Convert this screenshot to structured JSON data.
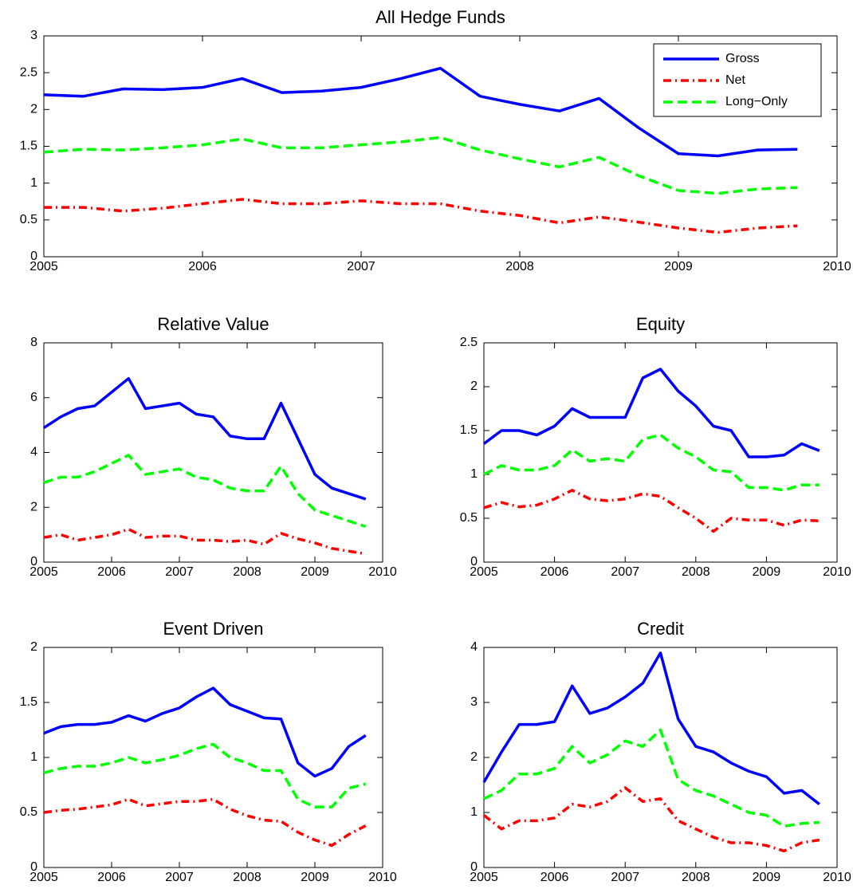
{
  "chart_data": [
    {
      "type": "line",
      "title": "All Hedge Funds",
      "legend": "upper right",
      "x": [
        2005,
        2005.25,
        2005.5,
        2005.75,
        2006,
        2006.25,
        2006.5,
        2006.75,
        2007,
        2007.25,
        2007.5,
        2007.75,
        2008,
        2008.25,
        2008.5,
        2008.75,
        2009,
        2009.25,
        2009.5,
        2009.75
      ],
      "xlim": [
        2005,
        2010
      ],
      "xticks": [
        2005,
        2006,
        2007,
        2008,
        2009,
        2010
      ],
      "ylim": [
        0,
        3
      ],
      "yticks": [
        0,
        0.5,
        1,
        1.5,
        2,
        2.5,
        3
      ],
      "series": [
        {
          "name": "Gross",
          "color": "#0000ff",
          "linestyle": "solid",
          "values": [
            2.2,
            2.18,
            2.28,
            2.27,
            2.3,
            2.42,
            2.23,
            2.25,
            2.3,
            2.42,
            2.56,
            2.18,
            2.07,
            1.98,
            2.15,
            1.75,
            1.4,
            1.37,
            1.45,
            1.46
          ]
        },
        {
          "name": "Net",
          "color": "#ff0000",
          "linestyle": "dashdot",
          "values": [
            0.67,
            0.67,
            0.62,
            0.66,
            0.72,
            0.78,
            0.72,
            0.72,
            0.76,
            0.72,
            0.72,
            0.62,
            0.56,
            0.46,
            0.54,
            0.47,
            0.39,
            0.33,
            0.39,
            0.42
          ]
        },
        {
          "name": "Long−Only",
          "color": "#00ff00",
          "linestyle": "dashed",
          "values": [
            1.42,
            1.46,
            1.45,
            1.48,
            1.52,
            1.6,
            1.48,
            1.48,
            1.52,
            1.56,
            1.62,
            1.45,
            1.33,
            1.22,
            1.35,
            1.1,
            0.9,
            0.86,
            0.92,
            0.94
          ]
        }
      ]
    },
    {
      "type": "line",
      "title": "Relative Value",
      "x": [
        2005,
        2005.25,
        2005.5,
        2005.75,
        2006,
        2006.25,
        2006.5,
        2006.75,
        2007,
        2007.25,
        2007.5,
        2007.75,
        2008,
        2008.25,
        2008.5,
        2008.75,
        2009,
        2009.25,
        2009.5,
        2009.75
      ],
      "xlim": [
        2005,
        2010
      ],
      "xticks": [
        2005,
        2006,
        2007,
        2008,
        2009,
        2010
      ],
      "ylim": [
        0,
        8
      ],
      "yticks": [
        0,
        2,
        4,
        6,
        8
      ],
      "series": [
        {
          "color": "#0000ff",
          "linestyle": "solid",
          "values": [
            4.9,
            5.3,
            5.6,
            5.7,
            6.2,
            6.7,
            5.6,
            5.7,
            5.8,
            5.4,
            5.3,
            4.6,
            4.5,
            4.5,
            5.8,
            4.5,
            3.2,
            2.7,
            2.5,
            2.3
          ]
        },
        {
          "color": "#ff0000",
          "linestyle": "dashdot",
          "values": [
            0.9,
            1.0,
            0.8,
            0.9,
            1.0,
            1.2,
            0.9,
            0.95,
            0.95,
            0.8,
            0.8,
            0.75,
            0.8,
            0.65,
            1.05,
            0.85,
            0.7,
            0.5,
            0.4,
            0.3
          ]
        },
        {
          "color": "#00ff00",
          "linestyle": "dashed",
          "values": [
            2.9,
            3.1,
            3.1,
            3.3,
            3.6,
            3.9,
            3.2,
            3.3,
            3.4,
            3.1,
            3.0,
            2.7,
            2.6,
            2.6,
            3.5,
            2.5,
            1.9,
            1.7,
            1.5,
            1.3
          ]
        }
      ]
    },
    {
      "type": "line",
      "title": "Equity",
      "x": [
        2005,
        2005.25,
        2005.5,
        2005.75,
        2006,
        2006.25,
        2006.5,
        2006.75,
        2007,
        2007.25,
        2007.5,
        2007.75,
        2008,
        2008.25,
        2008.5,
        2008.75,
        2009,
        2009.25,
        2009.5,
        2009.75
      ],
      "xlim": [
        2005,
        2010
      ],
      "xticks": [
        2005,
        2006,
        2007,
        2008,
        2009,
        2010
      ],
      "ylim": [
        0,
        2.5
      ],
      "yticks": [
        0,
        0.5,
        1,
        1.5,
        2,
        2.5
      ],
      "series": [
        {
          "color": "#0000ff",
          "linestyle": "solid",
          "values": [
            1.35,
            1.5,
            1.5,
            1.45,
            1.55,
            1.75,
            1.65,
            1.65,
            1.65,
            2.1,
            2.2,
            1.95,
            1.78,
            1.55,
            1.5,
            1.2,
            1.2,
            1.22,
            1.35,
            1.27
          ]
        },
        {
          "color": "#ff0000",
          "linestyle": "dashdot",
          "values": [
            0.62,
            0.68,
            0.63,
            0.65,
            0.72,
            0.82,
            0.72,
            0.7,
            0.72,
            0.78,
            0.75,
            0.62,
            0.5,
            0.35,
            0.5,
            0.48,
            0.48,
            0.42,
            0.48,
            0.47
          ]
        },
        {
          "color": "#00ff00",
          "linestyle": "dashed",
          "values": [
            1.0,
            1.1,
            1.05,
            1.05,
            1.1,
            1.28,
            1.15,
            1.18,
            1.15,
            1.4,
            1.45,
            1.3,
            1.2,
            1.05,
            1.03,
            0.85,
            0.85,
            0.82,
            0.88,
            0.88
          ]
        }
      ]
    },
    {
      "type": "line",
      "title": "Event Driven",
      "x": [
        2005,
        2005.25,
        2005.5,
        2005.75,
        2006,
        2006.25,
        2006.5,
        2006.75,
        2007,
        2007.25,
        2007.5,
        2007.75,
        2008,
        2008.25,
        2008.5,
        2008.75,
        2009,
        2009.25,
        2009.5,
        2009.75
      ],
      "xlim": [
        2005,
        2010
      ],
      "xticks": [
        2005,
        2006,
        2007,
        2008,
        2009,
        2010
      ],
      "ylim": [
        0,
        2
      ],
      "yticks": [
        0,
        0.5,
        1,
        1.5,
        2
      ],
      "series": [
        {
          "color": "#0000ff",
          "linestyle": "solid",
          "values": [
            1.22,
            1.28,
            1.3,
            1.3,
            1.32,
            1.38,
            1.33,
            1.4,
            1.45,
            1.55,
            1.63,
            1.48,
            1.42,
            1.36,
            1.35,
            0.95,
            0.83,
            0.9,
            1.1,
            1.2
          ]
        },
        {
          "color": "#ff0000",
          "linestyle": "dashdot",
          "values": [
            0.5,
            0.52,
            0.53,
            0.55,
            0.57,
            0.62,
            0.56,
            0.58,
            0.6,
            0.6,
            0.62,
            0.53,
            0.47,
            0.43,
            0.42,
            0.32,
            0.25,
            0.2,
            0.3,
            0.38
          ]
        },
        {
          "color": "#00ff00",
          "linestyle": "dashed",
          "values": [
            0.86,
            0.9,
            0.92,
            0.92,
            0.95,
            1.0,
            0.95,
            0.98,
            1.02,
            1.08,
            1.12,
            1.0,
            0.95,
            0.88,
            0.88,
            0.62,
            0.55,
            0.55,
            0.72,
            0.76
          ]
        }
      ]
    },
    {
      "type": "line",
      "title": "Credit",
      "x": [
        2005,
        2005.25,
        2005.5,
        2005.75,
        2006,
        2006.25,
        2006.5,
        2006.75,
        2007,
        2007.25,
        2007.5,
        2007.75,
        2008,
        2008.25,
        2008.5,
        2008.75,
        2009,
        2009.25,
        2009.5,
        2009.75
      ],
      "xlim": [
        2005,
        2010
      ],
      "xticks": [
        2005,
        2006,
        2007,
        2008,
        2009,
        2010
      ],
      "ylim": [
        0,
        4
      ],
      "yticks": [
        0,
        1,
        2,
        3,
        4
      ],
      "series": [
        {
          "color": "#0000ff",
          "linestyle": "solid",
          "values": [
            1.55,
            2.1,
            2.6,
            2.6,
            2.65,
            3.3,
            2.8,
            2.9,
            3.1,
            3.35,
            3.9,
            2.7,
            2.2,
            2.1,
            1.9,
            1.75,
            1.65,
            1.35,
            1.4,
            1.15
          ]
        },
        {
          "color": "#ff0000",
          "linestyle": "dashdot",
          "values": [
            0.95,
            0.7,
            0.85,
            0.85,
            0.9,
            1.15,
            1.1,
            1.2,
            1.45,
            1.2,
            1.25,
            0.85,
            0.7,
            0.55,
            0.45,
            0.45,
            0.4,
            0.3,
            0.45,
            0.5
          ]
        },
        {
          "color": "#00ff00",
          "linestyle": "dashed",
          "values": [
            1.25,
            1.4,
            1.7,
            1.7,
            1.8,
            2.2,
            1.9,
            2.05,
            2.3,
            2.2,
            2.5,
            1.6,
            1.4,
            1.3,
            1.15,
            1.0,
            0.95,
            0.75,
            0.8,
            0.82
          ]
        }
      ]
    }
  ]
}
